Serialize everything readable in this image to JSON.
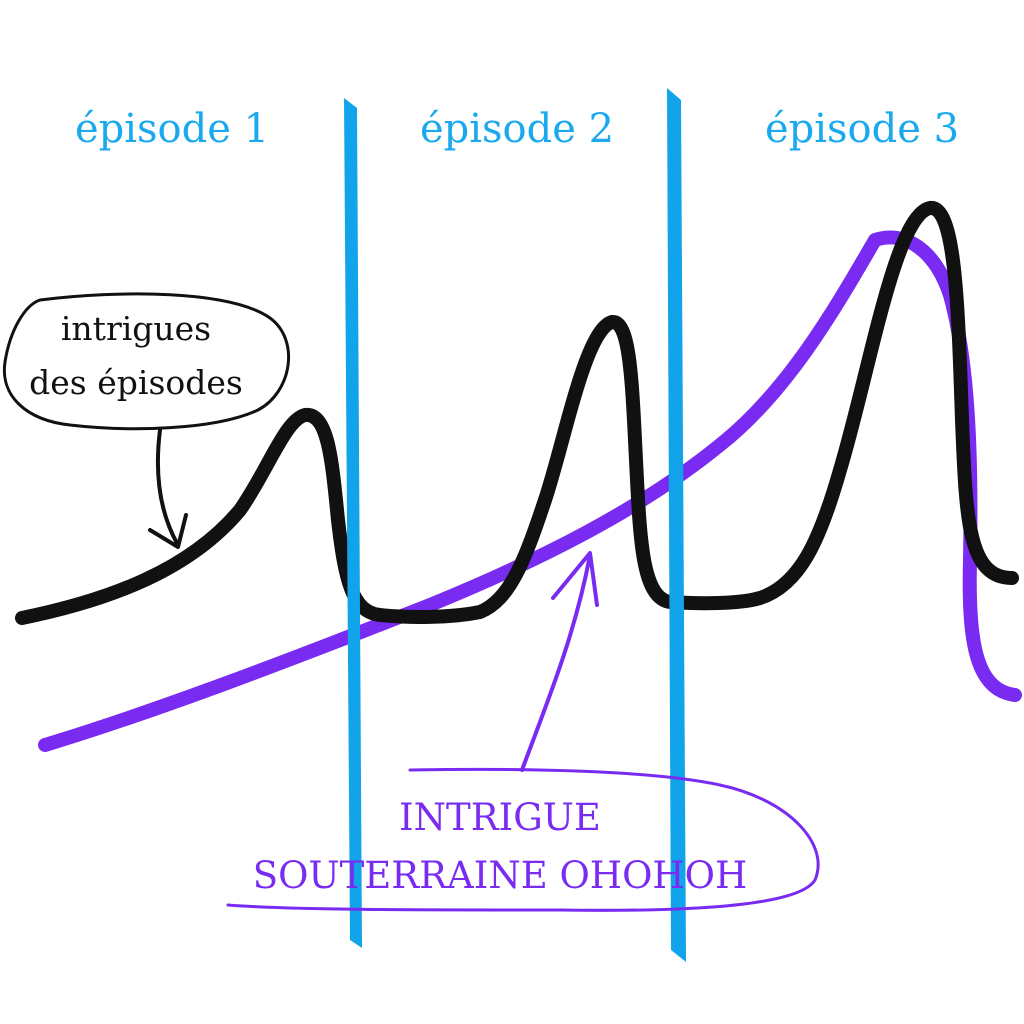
{
  "colors": {
    "divider": "#12A4EA",
    "episode_label": "#1AA9EE",
    "episode_plot": "#111111",
    "underground_plot": "#7A2BF2",
    "background": "#FFFFFF"
  },
  "episodes": [
    {
      "label": "épisode 1"
    },
    {
      "label": "épisode 2"
    },
    {
      "label": "épisode 3"
    }
  ],
  "annotations": {
    "episode_plots": {
      "line1": "intrigues",
      "line2": "des épisodes"
    },
    "underground_plot": {
      "line1": "INTRIGUE",
      "line2": "SOUTERRAINE OHOHOH"
    }
  }
}
